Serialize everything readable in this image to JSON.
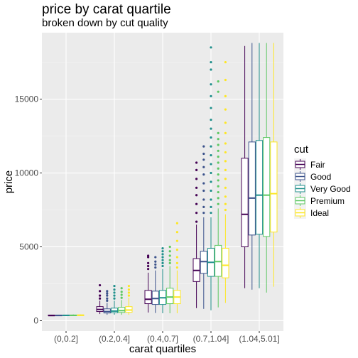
{
  "chart_data": {
    "type": "boxplot",
    "title": "price by carat quartile",
    "subtitle": "broken down by cut quality",
    "xlabel": "carat quartiles",
    "ylabel": "price",
    "categories": [
      "(0,0.2]",
      "(0.2,0.4]",
      "(0.4,0.7]",
      "(0.7,1.04]",
      "(1.04,5.01]"
    ],
    "ylim": [
      -700,
      19500
    ],
    "yticks": [
      0,
      5000,
      10000,
      15000
    ],
    "ytick_labels": [
      "0",
      "5000",
      "10000",
      "15000"
    ],
    "grid": true,
    "legend": {
      "title": "cut",
      "position": "right"
    },
    "series": [
      {
        "name": "Fair",
        "color": "#440154",
        "boxes": [
          {
            "min": 330,
            "q1": 330,
            "median": 350,
            "q3": 380,
            "max": 400,
            "outliers": []
          },
          {
            "min": 450,
            "q1": 620,
            "median": 760,
            "q3": 950,
            "max": 1350,
            "outliers": [
              1500,
              1700,
              2000,
              2400
            ]
          },
          {
            "min": 550,
            "q1": 1150,
            "median": 1450,
            "q3": 2050,
            "max": 3250,
            "outliers": [
              3500,
              3700,
              3900,
              4300,
              4400
            ]
          },
          {
            "min": 850,
            "q1": 2650,
            "median": 3400,
            "q3": 4200,
            "max": 6500,
            "outliers": [
              6700,
              7300,
              7900,
              8500,
              9000,
              9600,
              10200,
              10700
            ]
          },
          {
            "min": 2200,
            "q1": 5000,
            "median": 7200,
            "q3": 11000,
            "max": 18600,
            "outliers": []
          }
        ]
      },
      {
        "name": "Good",
        "color": "#3B528B",
        "boxes": [
          {
            "min": 330,
            "q1": 335,
            "median": 355,
            "q3": 370,
            "max": 390,
            "outliers": []
          },
          {
            "min": 400,
            "q1": 520,
            "median": 620,
            "q3": 800,
            "max": 1200,
            "outliers": [
              1350,
              1500,
              1700,
              1850,
              2000
            ]
          },
          {
            "min": 520,
            "q1": 1100,
            "median": 1500,
            "q3": 2000,
            "max": 3400,
            "outliers": [
              3600,
              3800,
              4000,
              4300
            ]
          },
          {
            "min": 800,
            "q1": 3200,
            "median": 4000,
            "q3": 4700,
            "max": 7000,
            "outliers": [
              7300,
              7700,
              8200,
              8800,
              9300,
              9900,
              10400,
              10900,
              11300,
              11800
            ]
          },
          {
            "min": 2100,
            "q1": 5800,
            "median": 8300,
            "q3": 12100,
            "max": 18800,
            "outliers": []
          }
        ]
      },
      {
        "name": "Very Good",
        "color": "#21908C",
        "boxes": [
          {
            "min": 330,
            "q1": 340,
            "median": 360,
            "q3": 380,
            "max": 400,
            "outliers": []
          },
          {
            "min": 400,
            "q1": 540,
            "median": 650,
            "q3": 850,
            "max": 1350,
            "outliers": [
              1500,
              1700,
              1900,
              2100,
              2350
            ]
          },
          {
            "min": 500,
            "q1": 1100,
            "median": 1550,
            "q3": 2050,
            "max": 3500,
            "outliers": [
              3700,
              3900,
              4100,
              4300,
              4500,
              4700,
              4900
            ]
          },
          {
            "min": 700,
            "q1": 3000,
            "median": 3950,
            "q3": 4900,
            "max": 7000,
            "outliers": [
              7300,
              7700,
              8200,
              8800,
              9400,
              10000,
              10600,
              11200,
              11800,
              12400,
              13000,
              13600,
              14400,
              15200,
              16000,
              17000,
              17500,
              18500
            ]
          },
          {
            "min": 2200,
            "q1": 5850,
            "median": 8500,
            "q3": 12200,
            "max": 18800,
            "outliers": []
          }
        ]
      },
      {
        "name": "Premium",
        "color": "#5DC863",
        "boxes": [
          {
            "min": 330,
            "q1": 340,
            "median": 360,
            "q3": 385,
            "max": 420,
            "outliers": []
          },
          {
            "min": 400,
            "q1": 560,
            "median": 680,
            "q3": 900,
            "max": 1400,
            "outliers": [
              1550,
              1750,
              1950,
              2200
            ]
          },
          {
            "min": 500,
            "q1": 1150,
            "median": 1600,
            "q3": 2200,
            "max": 3700,
            "outliers": [
              3900,
              4100,
              4400,
              4700,
              5000
            ]
          },
          {
            "min": 900,
            "q1": 3000,
            "median": 4000,
            "q3": 5100,
            "max": 7600,
            "outliers": [
              7900,
              8300,
              8700,
              9100,
              9500,
              9900,
              10300,
              10700,
              11100,
              11500,
              11900,
              12300,
              12700,
              15500,
              16200
            ]
          },
          {
            "min": 1900,
            "q1": 5700,
            "median": 8500,
            "q3": 12400,
            "max": 18800,
            "outliers": []
          }
        ]
      },
      {
        "name": "Ideal",
        "color": "#FDE725",
        "boxes": [
          {
            "min": 330,
            "q1": 345,
            "median": 370,
            "q3": 390,
            "max": 420,
            "outliers": []
          },
          {
            "min": 400,
            "q1": 570,
            "median": 720,
            "q3": 950,
            "max": 1550,
            "outliers": [
              1700,
              1900,
              2100,
              2350
            ]
          },
          {
            "min": 500,
            "q1": 1150,
            "median": 1600,
            "q3": 2050,
            "max": 3400,
            "outliers": [
              3600,
              3900,
              4300,
              4800,
              5400,
              6000,
              6600
            ]
          },
          {
            "min": 1200,
            "q1": 2900,
            "median": 3750,
            "q3": 4900,
            "max": 7200,
            "outliers": [
              7500,
              7900,
              8400,
              9000,
              9600,
              10200,
              10800,
              11400,
              12000,
              12700,
              13400,
              14300,
              15200,
              16300,
              17500
            ]
          },
          {
            "min": 2300,
            "q1": 6000,
            "median": 8600,
            "q3": 12100,
            "max": 18800,
            "outliers": []
          }
        ]
      }
    ]
  }
}
